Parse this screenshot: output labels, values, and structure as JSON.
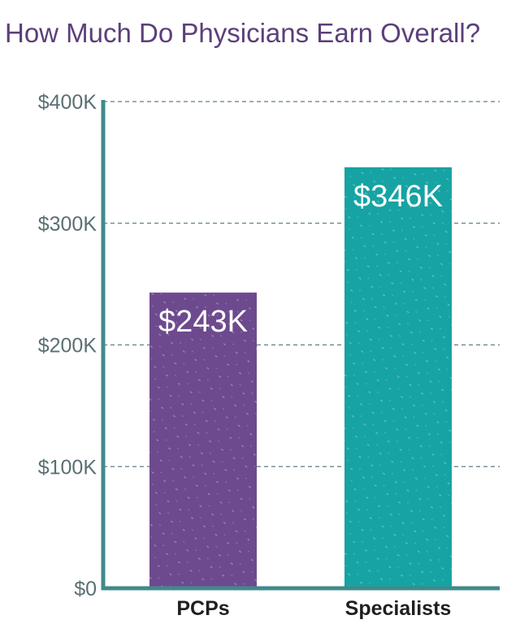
{
  "chart_data": {
    "type": "bar",
    "title": "How Much Do Physicians Earn Overall?",
    "categories": [
      "PCPs",
      "Specialists"
    ],
    "values": [
      243,
      346
    ],
    "value_labels": [
      "$243K",
      "$346K"
    ],
    "unit": "thousand USD",
    "ylim": [
      0,
      400
    ],
    "yticks": [
      0,
      100,
      200,
      300,
      400
    ],
    "ytick_labels": [
      "$0",
      "$100K",
      "$200K",
      "$300K",
      "$400K"
    ],
    "xlabel": "",
    "ylabel": "",
    "grid": true,
    "grid_style": "dashed horizontal",
    "legend": "none",
    "colors": {
      "title": "#5b3f7a",
      "axis": "#3f8a8d",
      "grid": "#5f7f85",
      "tick_text": "#5b6f74",
      "category_text": "#1f1f1f",
      "bar_label_text": "#ffffff",
      "bars": [
        "#6d4a8e",
        "#17a3a3"
      ]
    }
  }
}
